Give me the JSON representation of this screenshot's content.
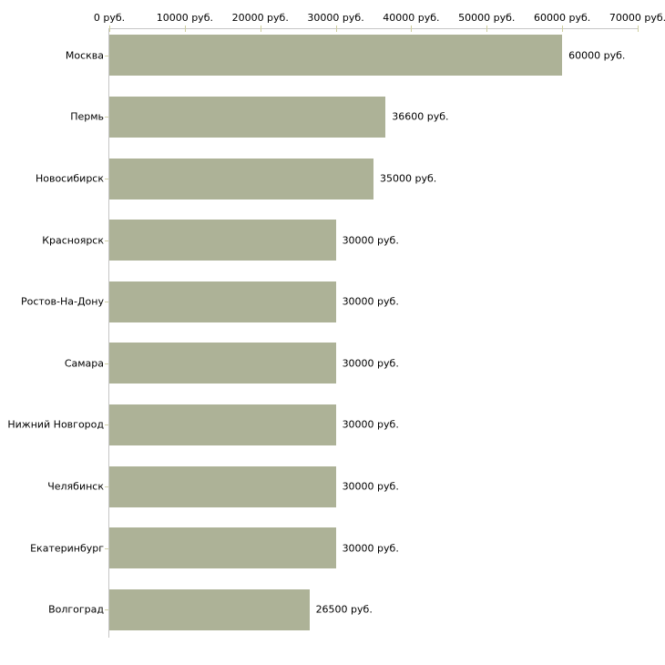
{
  "chart_data": {
    "type": "bar",
    "orientation": "horizontal",
    "title": "",
    "categories": [
      "Москва",
      "Пермь",
      "Новосибирск",
      "Красноярск",
      "Ростов-На-Дону",
      "Самара",
      "Нижний Новгород",
      "Челябинск",
      "Екатеринбург",
      "Волгоград"
    ],
    "values": [
      60000,
      36600,
      35000,
      30000,
      30000,
      30000,
      30000,
      30000,
      30000,
      26500
    ],
    "value_labels": [
      "60000 руб.",
      "36600 руб.",
      "35000 руб.",
      "30000 руб.",
      "30000 руб.",
      "30000 руб.",
      "30000 руб.",
      "30000 руб.",
      "30000 руб.",
      "26500 руб."
    ],
    "x_ticks": [
      0,
      10000,
      20000,
      30000,
      40000,
      50000,
      60000,
      70000
    ],
    "x_tick_labels": [
      "0 руб.",
      "10000 руб.",
      "20000 руб.",
      "30000 руб.",
      "40000 руб.",
      "50000 руб.",
      "60000 руб.",
      "70000 руб."
    ],
    "xlim": [
      0,
      70000
    ],
    "unit": "руб.",
    "legend": null,
    "grid": false,
    "axis_position": "top",
    "colors": {
      "bar": "#adb297",
      "axis": "#c6c6c6",
      "tick": "#cfcf9e",
      "category_tick": "#cfcfa6",
      "text": "#000000",
      "background": "#ffffff"
    }
  }
}
